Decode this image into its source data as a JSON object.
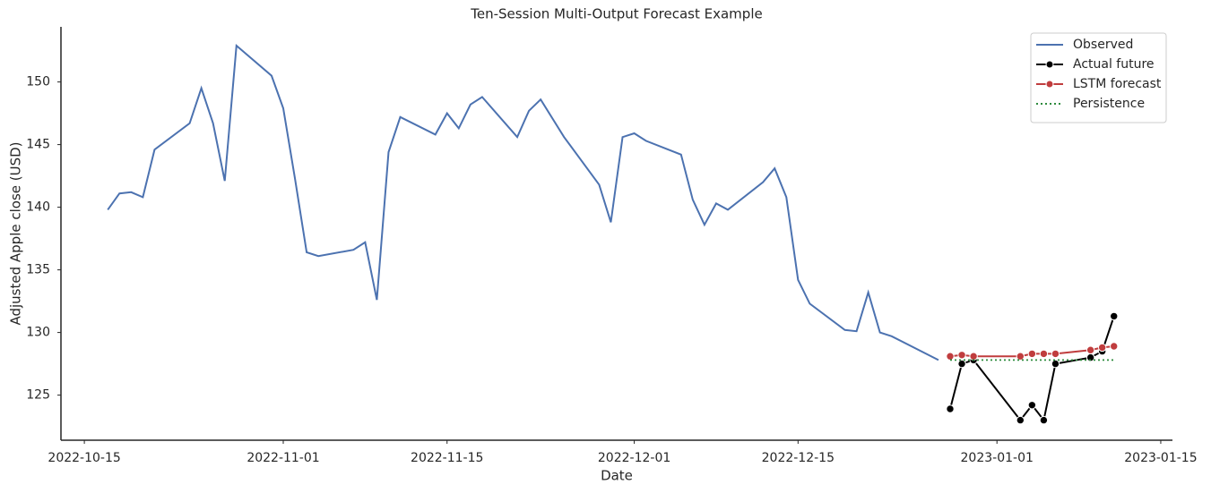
{
  "chart_data": {
    "type": "line",
    "title": "Ten-Session Multi-Output Forecast Example",
    "xlabel": "Date",
    "ylabel": "Adjusted Apple close (USD)",
    "xlim": [
      "2022-10-13",
      "2023-01-16"
    ],
    "xticks": [
      "2022-10-15",
      "2022-11-01",
      "2022-11-15",
      "2022-12-01",
      "2022-12-15",
      "2023-01-01",
      "2023-01-15"
    ],
    "ylim": [
      121.4,
      154.4
    ],
    "yticks": [
      125,
      130,
      135,
      140,
      145,
      150
    ],
    "legend": "upper right",
    "series": [
      {
        "name": "Observed",
        "color": "#4c72b0",
        "style": "solid",
        "marker": false,
        "x": [
          "2022-10-17",
          "2022-10-18",
          "2022-10-19",
          "2022-10-20",
          "2022-10-21",
          "2022-10-24",
          "2022-10-25",
          "2022-10-26",
          "2022-10-27",
          "2022-10-28",
          "2022-10-31",
          "2022-11-01",
          "2022-11-02",
          "2022-11-03",
          "2022-11-04",
          "2022-11-07",
          "2022-11-08",
          "2022-11-09",
          "2022-11-10",
          "2022-11-11",
          "2022-11-14",
          "2022-11-15",
          "2022-11-16",
          "2022-11-17",
          "2022-11-18",
          "2022-11-21",
          "2022-11-22",
          "2022-11-23",
          "2022-11-25",
          "2022-11-28",
          "2022-11-29",
          "2022-11-30",
          "2022-12-01",
          "2022-12-02",
          "2022-12-05",
          "2022-12-06",
          "2022-12-07",
          "2022-12-08",
          "2022-12-09",
          "2022-12-12",
          "2022-12-13",
          "2022-12-14",
          "2022-12-15",
          "2022-12-16",
          "2022-12-19",
          "2022-12-20",
          "2022-12-21",
          "2022-12-22",
          "2022-12-23",
          "2022-12-27"
        ],
        "values": [
          139.8,
          141.1,
          141.2,
          140.8,
          144.6,
          146.7,
          149.5,
          146.7,
          142.1,
          152.9,
          150.5,
          147.9,
          142.3,
          136.4,
          136.1,
          136.6,
          137.2,
          132.6,
          144.4,
          147.2,
          145.8,
          147.5,
          146.3,
          148.2,
          148.8,
          145.6,
          147.7,
          148.6,
          145.6,
          141.8,
          138.8,
          145.6,
          145.9,
          145.3,
          144.2,
          140.6,
          138.6,
          140.3,
          139.8,
          142.0,
          143.1,
          140.8,
          134.2,
          132.3,
          130.2,
          130.1,
          133.2,
          130.0,
          129.7,
          127.8
        ]
      },
      {
        "name": "Actual future",
        "color": "#000000",
        "style": "solid",
        "marker": true,
        "x": [
          "2022-12-28",
          "2022-12-29",
          "2022-12-30",
          "2023-01-03",
          "2023-01-04",
          "2023-01-05",
          "2023-01-06",
          "2023-01-09",
          "2023-01-10",
          "2023-01-11"
        ],
        "values": [
          123.9,
          127.5,
          127.8,
          123.0,
          124.2,
          123.0,
          127.5,
          128.0,
          128.5,
          131.3
        ]
      },
      {
        "name": "LSTM forecast",
        "color": "#c03d3e",
        "style": "solid",
        "marker": true,
        "x": [
          "2022-12-28",
          "2022-12-29",
          "2022-12-30",
          "2023-01-03",
          "2023-01-04",
          "2023-01-05",
          "2023-01-06",
          "2023-01-09",
          "2023-01-10",
          "2023-01-11"
        ],
        "values": [
          128.1,
          128.2,
          128.1,
          128.1,
          128.3,
          128.3,
          128.3,
          128.6,
          128.8,
          128.9
        ]
      },
      {
        "name": "Persistence",
        "color": "#2e8b3e",
        "style": "dotted",
        "marker": false,
        "x": [
          "2022-12-28",
          "2022-12-29",
          "2022-12-30",
          "2023-01-03",
          "2023-01-04",
          "2023-01-05",
          "2023-01-06",
          "2023-01-09",
          "2023-01-10",
          "2023-01-11"
        ],
        "values": [
          127.8,
          127.8,
          127.8,
          127.8,
          127.8,
          127.8,
          127.8,
          127.8,
          127.8,
          127.8
        ]
      }
    ]
  }
}
